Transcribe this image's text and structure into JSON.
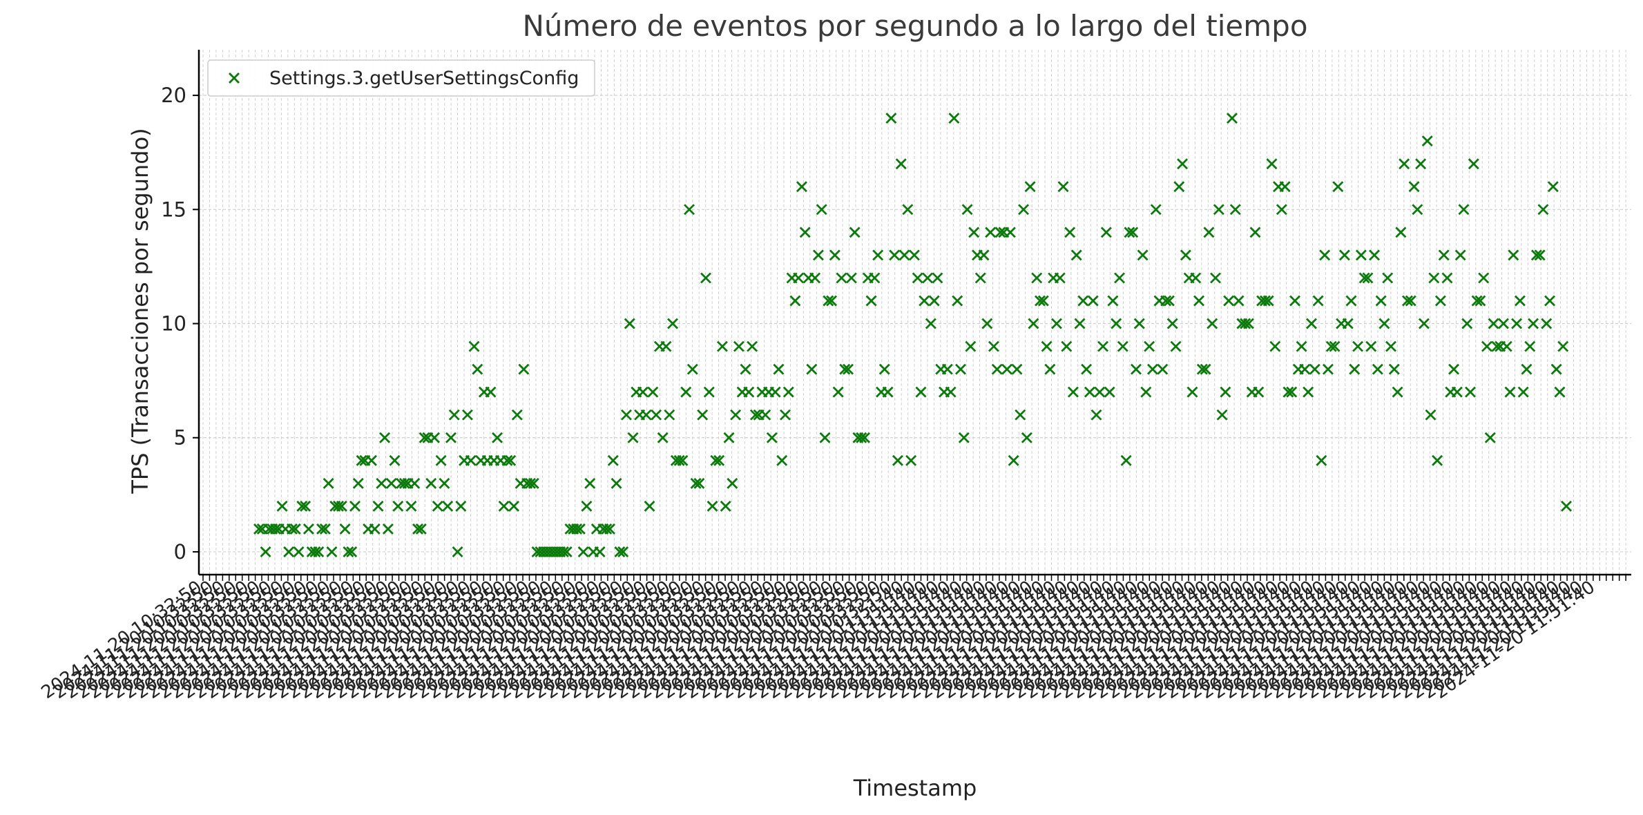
{
  "chart_data": {
    "type": "scatter",
    "title": "Número de eventos por segundo a lo largo del tiempo",
    "xlabel": "Timestamp",
    "ylabel": "TPS (Transacciones por segundo)",
    "ylim": [
      -1,
      22
    ],
    "yticks": [
      0,
      5,
      10,
      15,
      20
    ],
    "grid": true,
    "legend_position": "top-left",
    "marker": "x",
    "colors": {
      "series": "#0a7a0a",
      "grid": "#cfcfcf",
      "axis": "#000000"
    },
    "x_tick_labels_visible": [
      "2024-11-20 10:32:50",
      "2024-11-20 11:51:40"
    ],
    "series": [
      {
        "name": "Settings.3.getUserSettingsConfig",
        "values": [
          1,
          1,
          0,
          1,
          1,
          1,
          1,
          2,
          1,
          0,
          1,
          1,
          0,
          2,
          2,
          1,
          0,
          0,
          0,
          1,
          1,
          3,
          0,
          2,
          2,
          2,
          1,
          0,
          0,
          2,
          3,
          4,
          4,
          1,
          4,
          1,
          2,
          3,
          5,
          1,
          3,
          4,
          2,
          3,
          3,
          3,
          2,
          3,
          1,
          1,
          5,
          5,
          3,
          5,
          2,
          4,
          3,
          2,
          5,
          6,
          0,
          2,
          4,
          6,
          4,
          9,
          8,
          4,
          7,
          4,
          7,
          4,
          5,
          4,
          2,
          4,
          4,
          2,
          6,
          3,
          8,
          3,
          3,
          3,
          0,
          0,
          0,
          0,
          0,
          0,
          0,
          0,
          0,
          0,
          1,
          1,
          1,
          1,
          0,
          2,
          3,
          0,
          1,
          0,
          1,
          1,
          1,
          4,
          3,
          0,
          0,
          6,
          10,
          5,
          7,
          6,
          7,
          6,
          2,
          7,
          6,
          9,
          5,
          9,
          6,
          10,
          4,
          4,
          4,
          7,
          15,
          8,
          3,
          3,
          6,
          12,
          7,
          2,
          4,
          4,
          9,
          2,
          5,
          3,
          6,
          9,
          7,
          8,
          7,
          9,
          6,
          6,
          7,
          6,
          7,
          5,
          7,
          8,
          4,
          6,
          7,
          12,
          11,
          12,
          16,
          14,
          12,
          8,
          12,
          13,
          15,
          5,
          11,
          11,
          13,
          7,
          12,
          8,
          8,
          12,
          14,
          5,
          5,
          5,
          12,
          11,
          12,
          13,
          7,
          8,
          7,
          19,
          13,
          4,
          17,
          13,
          15,
          4,
          13,
          12,
          7,
          11,
          12,
          10,
          11,
          12,
          8,
          7,
          8,
          7,
          19,
          11,
          8,
          5,
          15,
          9,
          14,
          13,
          12,
          13,
          10,
          14,
          9,
          8,
          14,
          14,
          8,
          14,
          4,
          8,
          6,
          15,
          5,
          16,
          10,
          12,
          11,
          11,
          9,
          8,
          12,
          10,
          12,
          16,
          9,
          14,
          7,
          13,
          10,
          11,
          8,
          7,
          11,
          6,
          7,
          9,
          14,
          7,
          11,
          10,
          12,
          9,
          4,
          14,
          14,
          8,
          10,
          13,
          7,
          9,
          8,
          15,
          11,
          8,
          11,
          11,
          10,
          9,
          16,
          17,
          13,
          12,
          7,
          12,
          11,
          8,
          8,
          14,
          10,
          12,
          15,
          6,
          7,
          11,
          19,
          15,
          11,
          10,
          10,
          10,
          7,
          14,
          7,
          11,
          11,
          11,
          17,
          9,
          16,
          15,
          16,
          7,
          7,
          11,
          8,
          9,
          8,
          7,
          10,
          8,
          11,
          4,
          13,
          8,
          9,
          9,
          16,
          10,
          13,
          10,
          11,
          8,
          9,
          13,
          12,
          12,
          9,
          13,
          8,
          11,
          10,
          12,
          9,
          8,
          7,
          14,
          17,
          11,
          11,
          16,
          15,
          17,
          10,
          18,
          6,
          12,
          4,
          11,
          13,
          12,
          7,
          8,
          7,
          13,
          15,
          10,
          7,
          17,
          11,
          11,
          12,
          9,
          5,
          10,
          9,
          9,
          10,
          9,
          7,
          13,
          10,
          11,
          7,
          8,
          9,
          10,
          13,
          13,
          15,
          10,
          11,
          16,
          8,
          7,
          9,
          2
        ]
      }
    ]
  }
}
